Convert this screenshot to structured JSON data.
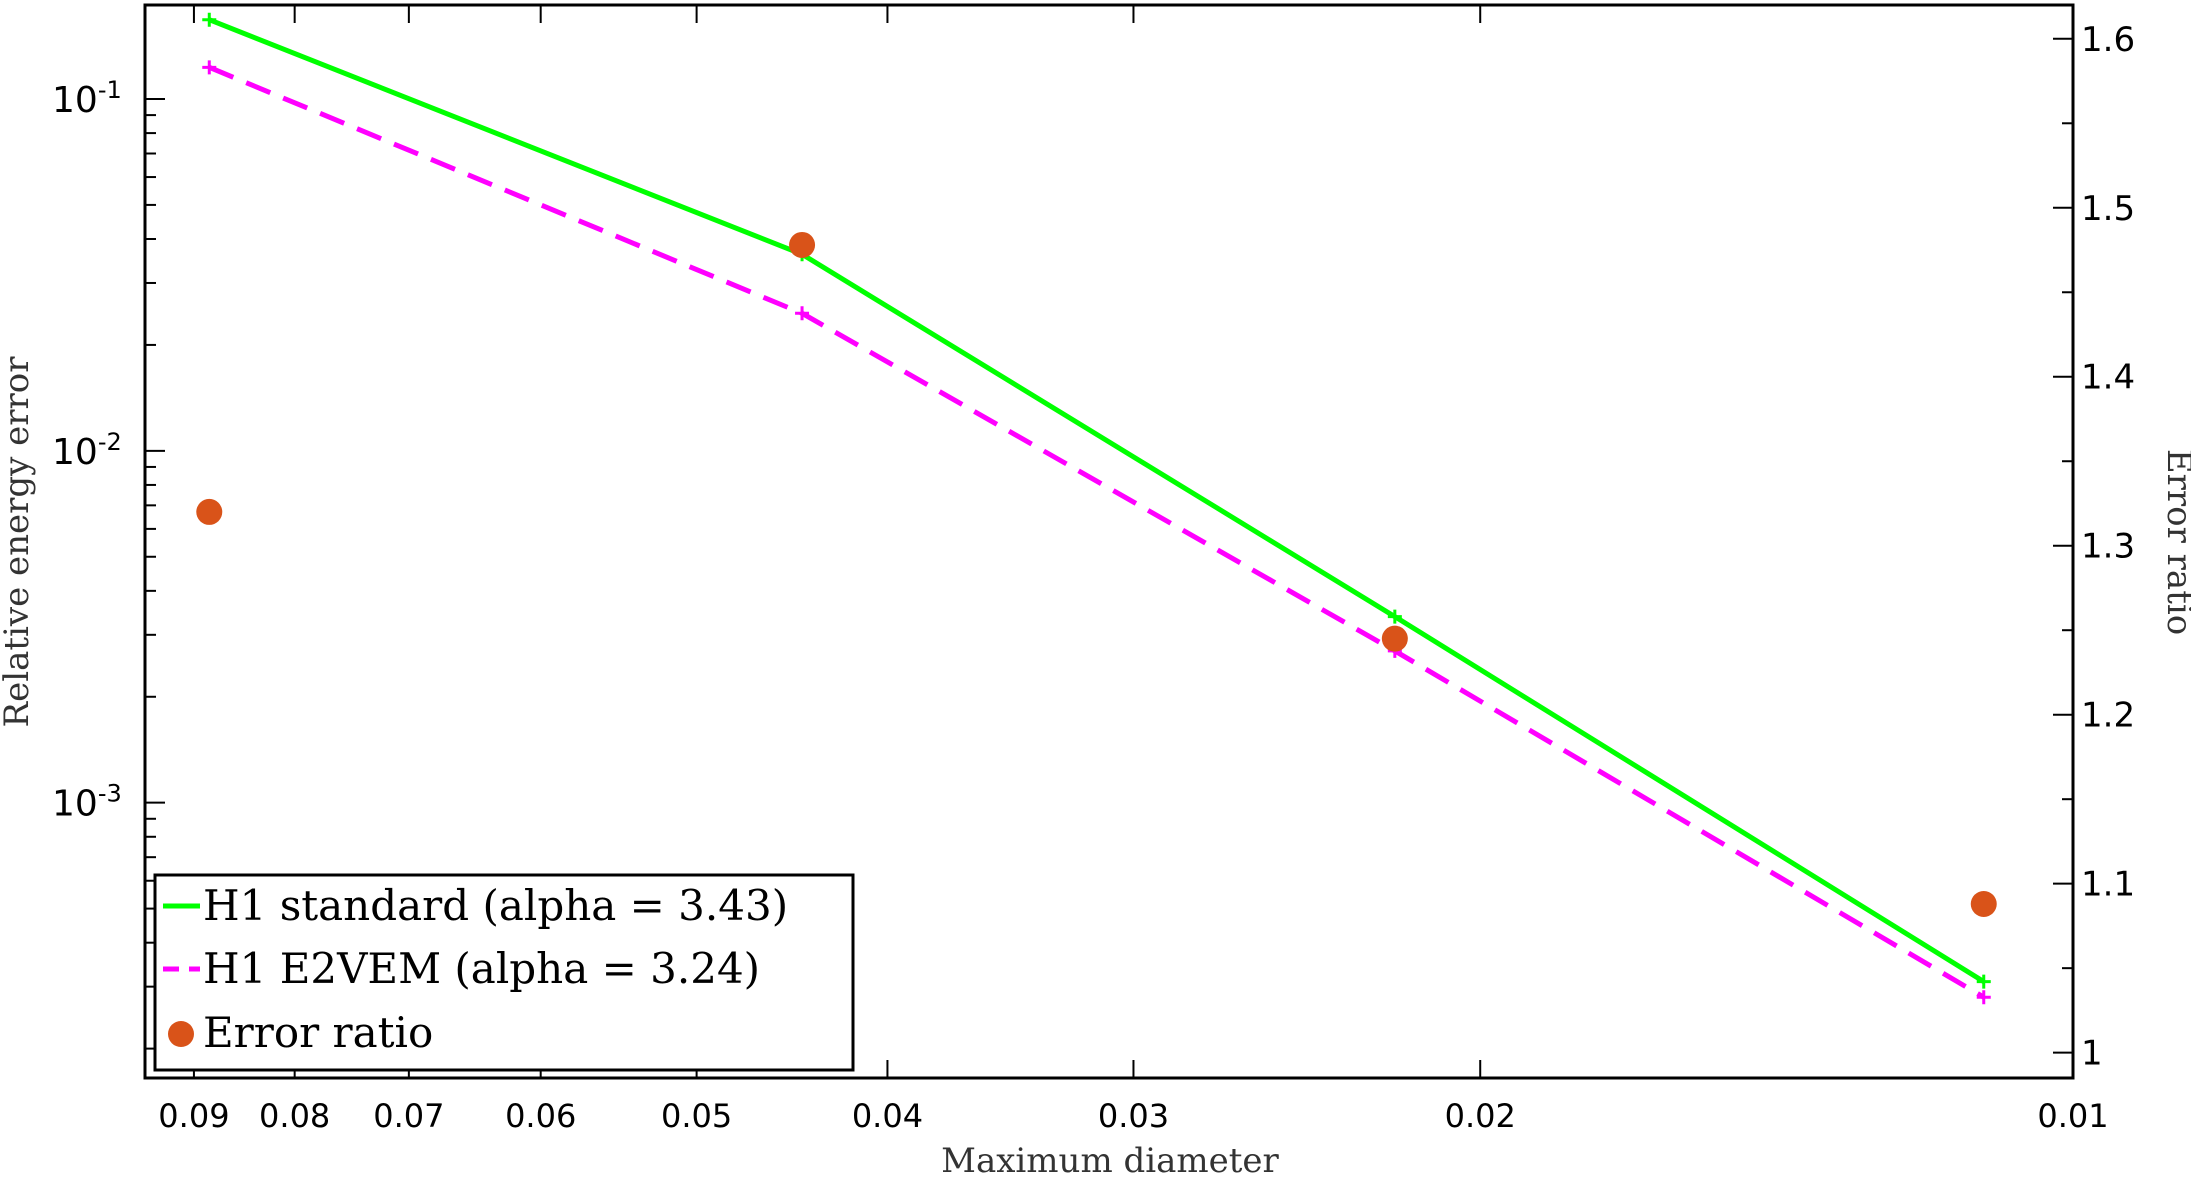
{
  "chart_data": {
    "type": "line",
    "title": "",
    "xlabel": "Maximum diameter",
    "ylabel": "Relative energy error",
    "y2label": "Error ratio",
    "xscale": "log",
    "yscale": "log",
    "x_reversed": true,
    "xlim": [
      0.0953,
      0.01
    ],
    "ylim": [
      0.000165,
      0.185
    ],
    "y2lim": [
      0.985,
      1.62
    ],
    "grid": false,
    "legend_position": "bottom-left",
    "xticks": [
      0.09,
      0.08,
      0.07,
      0.06,
      0.05,
      0.04,
      0.03,
      0.02,
      0.01
    ],
    "xtick_labels": [
      "0.09",
      "0.08",
      "0.07",
      "0.06",
      "0.05",
      "0.04",
      "0.03",
      "0.02",
      "0.01"
    ],
    "yticks": [
      {
        "base": "10",
        "exp": "-1",
        "value": 0.1
      },
      {
        "base": "10",
        "exp": "-2",
        "value": 0.01
      },
      {
        "base": "10",
        "exp": "-3",
        "value": 0.001
      }
    ],
    "y2ticks": [
      1.0,
      1.1,
      1.2,
      1.3,
      1.4,
      1.5,
      1.6
    ],
    "y2tick_labels": [
      "1",
      "1.1",
      "1.2",
      "1.3",
      "1.4",
      "1.5",
      "1.6"
    ],
    "series": [
      {
        "name": "H1 standard (alpha = 3.43)",
        "axis": "left",
        "style": "solid",
        "marker": "plus",
        "color": "#00ff00",
        "x": [
          0.0884,
          0.0442,
          0.0221,
          0.0111
        ],
        "y": [
          0.168,
          0.0362,
          0.00338,
          0.00031
        ]
      },
      {
        "name": "H1 E2VEM (alpha = 3.24)",
        "axis": "left",
        "style": "dashed",
        "marker": "plus",
        "color": "#ff00ff",
        "x": [
          0.0884,
          0.0442,
          0.0221,
          0.0111
        ],
        "y": [
          0.123,
          0.0246,
          0.0027,
          0.00028
        ]
      },
      {
        "name": "Error ratio",
        "axis": "right",
        "style": "none",
        "marker": "circle",
        "color": "#d95319",
        "x": [
          0.0884,
          0.0442,
          0.0221,
          0.0111
        ],
        "y": [
          1.32,
          1.478,
          1.245,
          1.088
        ]
      }
    ]
  }
}
